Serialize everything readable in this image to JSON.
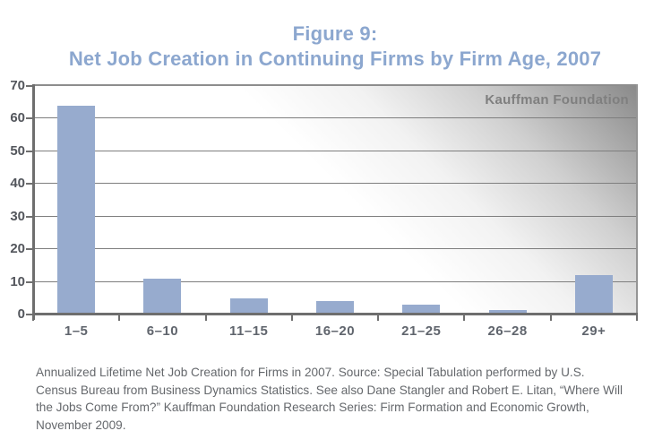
{
  "title": {
    "line1": "Figure 9:",
    "line2": "Net Job Creation in Continuing Firms by Firm Age, 2007"
  },
  "watermark": "Kauffman Foundation",
  "chart_data": {
    "type": "bar",
    "title": "Figure 9: Net Job Creation in Continuing Firms by Firm Age, 2007",
    "categories": [
      "1–5",
      "6–10",
      "11–15",
      "16–20",
      "21–25",
      "26–28",
      "29+"
    ],
    "values": [
      64,
      11,
      5,
      4,
      3,
      1.5,
      12
    ],
    "xlabel": "",
    "ylabel": "",
    "ylim": [
      0,
      70
    ],
    "y_ticks": [
      0,
      10,
      20,
      30,
      40,
      50,
      60,
      70
    ],
    "grid": true,
    "legend": "none",
    "bar_color": "#97abce"
  },
  "caption": "Annualized Lifetime Net Job Creation for Firms in 2007. Source: Special Tabulation performed by U.S. Census Bureau from Business Dynamics Statistics. See also Dane Stangler and Robert E. Litan, “Where Will the Jobs Come From?” Kauffman Foundation Research Series: Firm Formation and Economic Growth, November 2009.",
  "colors": {
    "bar": "#97abce",
    "title_text": "#8ca7cf",
    "gridline": "#7e7e7e",
    "axis": "#6e6e6e",
    "corner_gradient_dark": "#8a8a8a",
    "axis_label_text": "#53565c",
    "caption_text": "#65686c",
    "watermark_text": "#7f7f7f"
  }
}
